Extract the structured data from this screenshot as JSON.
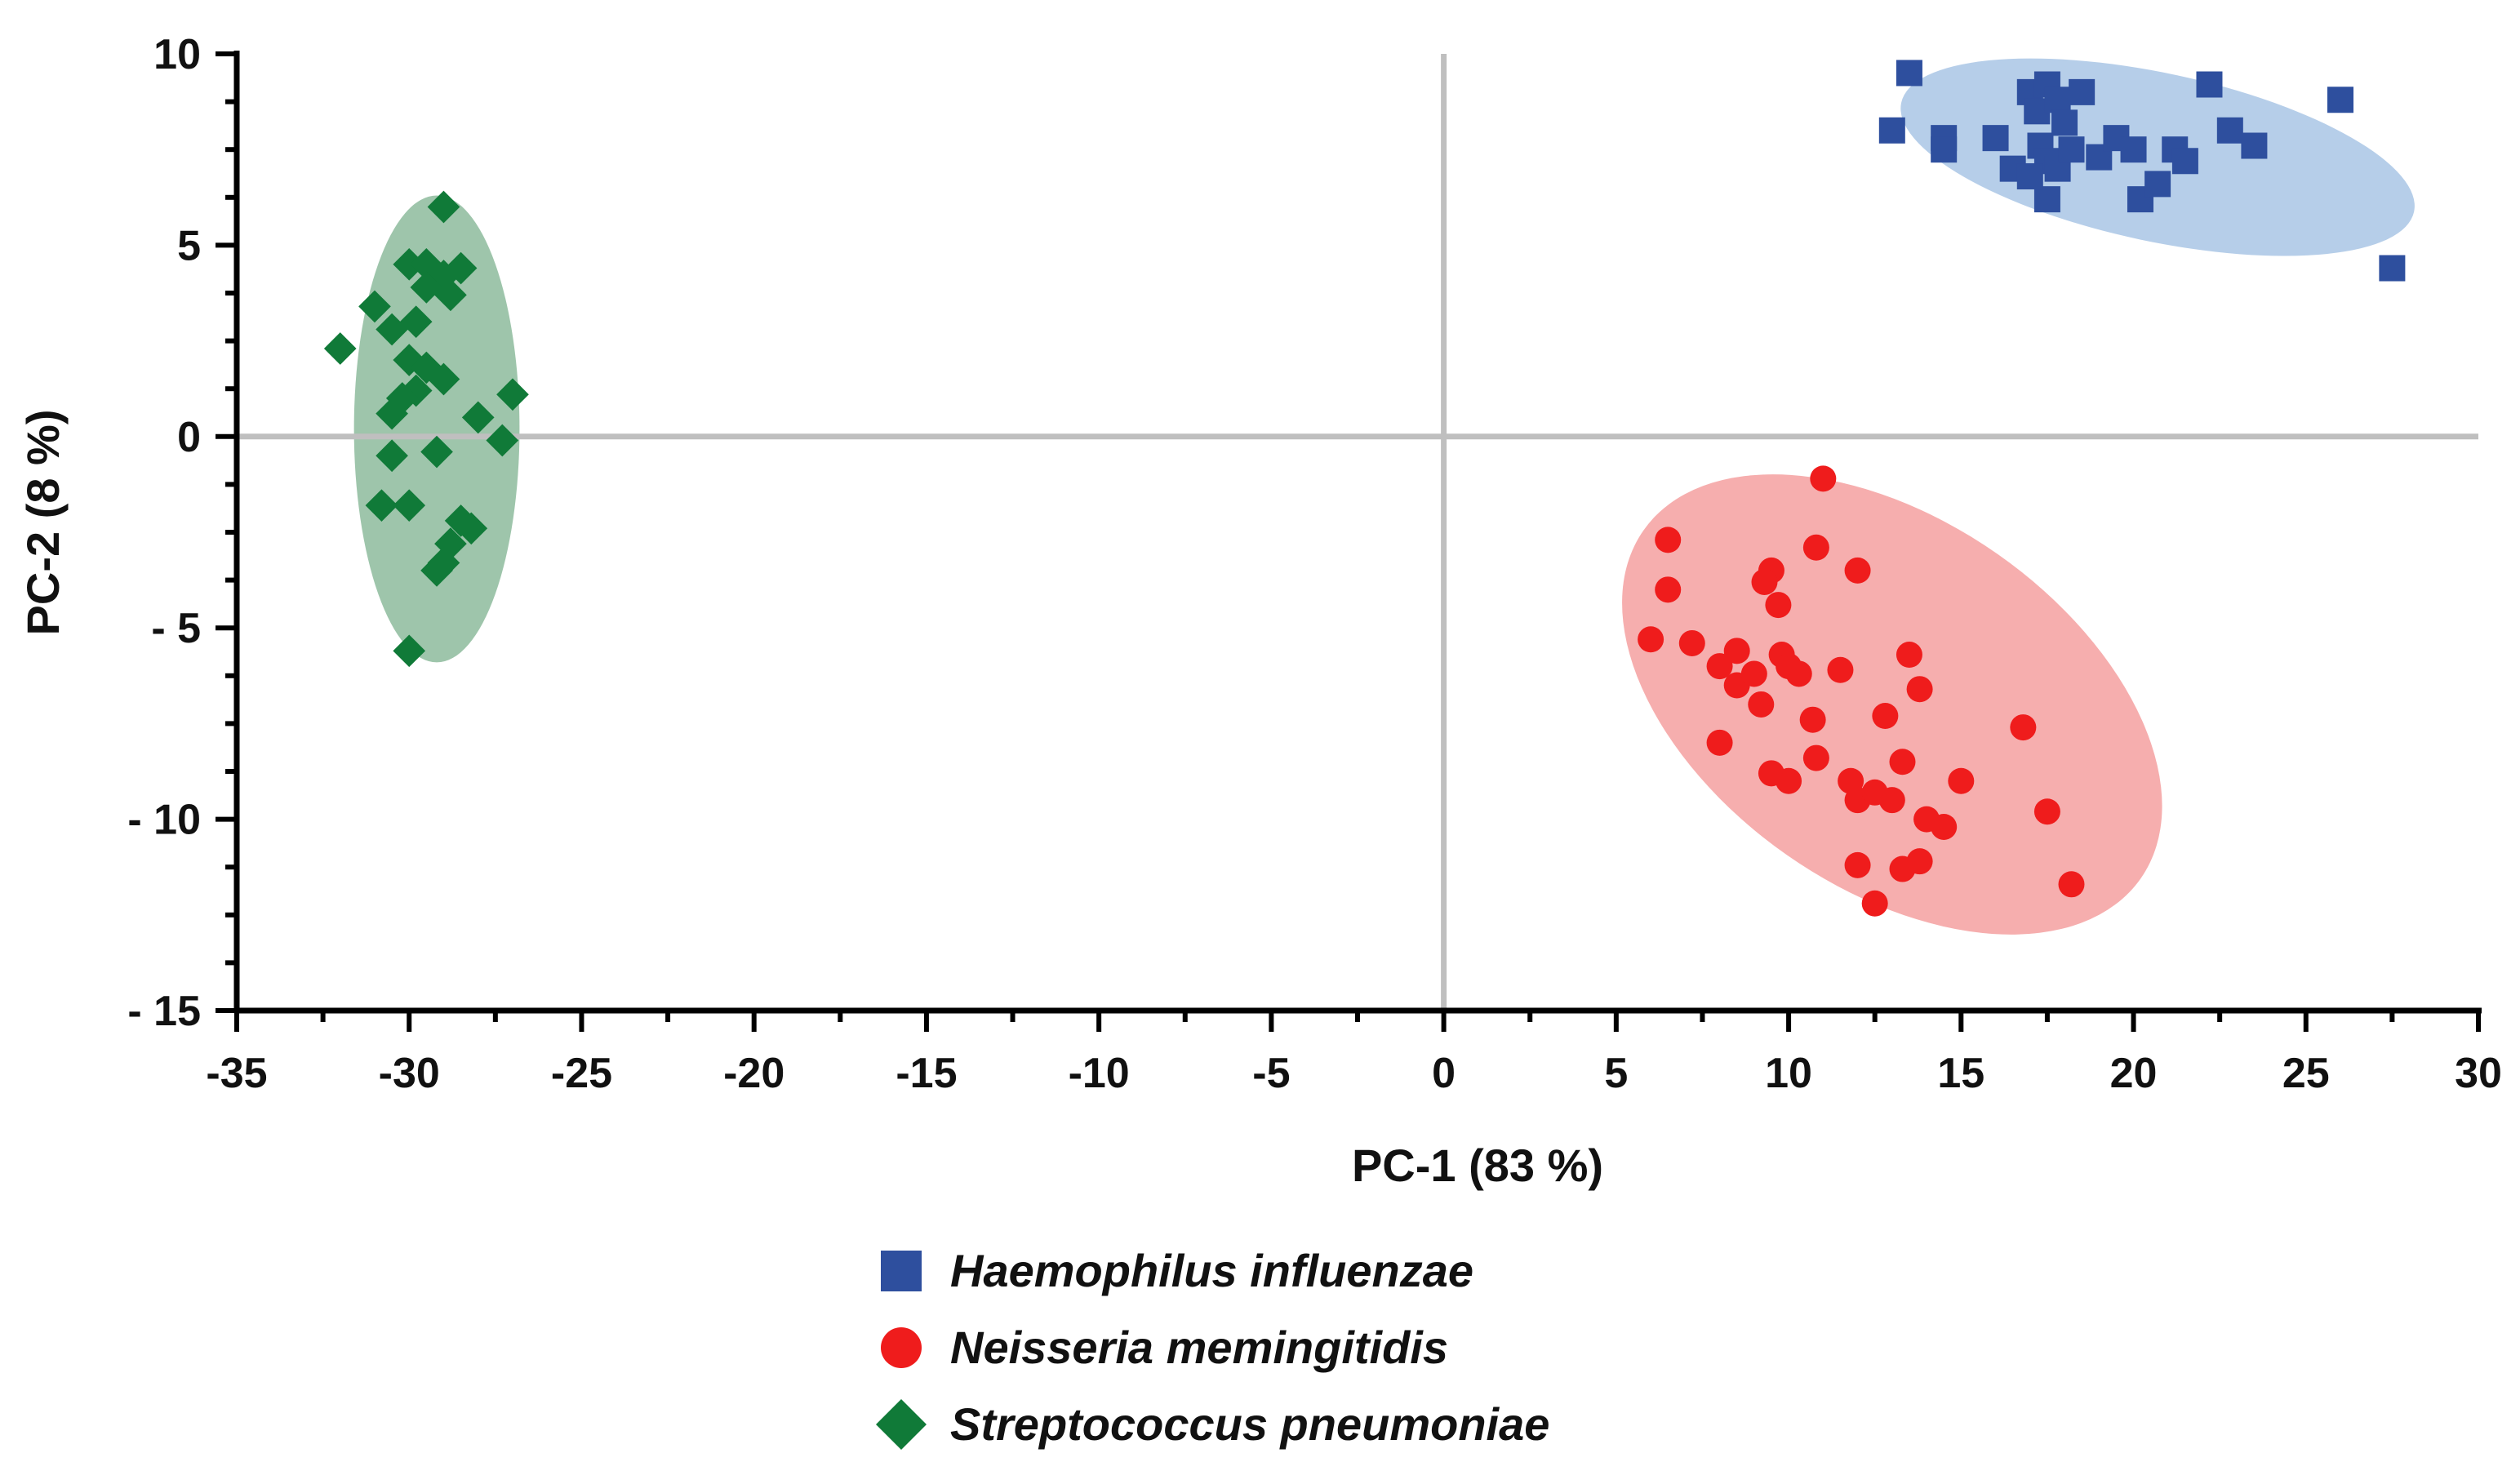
{
  "chart_data": {
    "type": "scatter",
    "title": "",
    "xlabel": "PC-1 (83 %)",
    "ylabel": "PC-2 (8 %)",
    "xlim": [
      -35,
      30
    ],
    "ylim": [
      -15,
      10
    ],
    "xticks": [
      -35,
      -30,
      -25,
      -20,
      -15,
      -10,
      -5,
      0,
      5,
      10,
      15,
      20,
      25,
      30
    ],
    "xtick_labels": [
      "-35",
      "-30",
      "-25",
      "-20",
      "-15",
      "-10",
      "-5",
      "0",
      "5",
      "10",
      "15",
      "20",
      "25",
      "30"
    ],
    "yticks": [
      10,
      5,
      0,
      -5,
      -10,
      -15
    ],
    "ytick_labels": [
      "10",
      "5",
      "0",
      "- 5",
      "- 10",
      "- 15"
    ],
    "reference_lines": {
      "x": 0,
      "y": 0,
      "color": "#bfbfbf"
    },
    "legend_position": "bottom-center",
    "series": [
      {
        "name": "Haemophilus influenzae",
        "marker": "square",
        "color": "#2e4f9e",
        "ellipse": {
          "center": [
            20.7,
            7.3
          ],
          "semi_axes": [
            7.6,
            2.2
          ],
          "angle_deg": -12,
          "color": "#a9c5e5"
        },
        "points": [
          [
            13.5,
            9.5
          ],
          [
            13.0,
            8.0
          ],
          [
            14.5,
            7.8
          ],
          [
            14.5,
            7.5
          ],
          [
            16.0,
            7.8
          ],
          [
            16.5,
            7.0
          ],
          [
            17.0,
            9.0
          ],
          [
            17.2,
            8.5
          ],
          [
            17.5,
            9.2
          ],
          [
            17.8,
            8.8
          ],
          [
            17.3,
            7.6
          ],
          [
            17.5,
            7.2
          ],
          [
            17.8,
            7.0
          ],
          [
            18.2,
            7.5
          ],
          [
            18.0,
            8.2
          ],
          [
            18.5,
            9.0
          ],
          [
            17.5,
            6.2
          ],
          [
            17.0,
            6.8
          ],
          [
            19.0,
            7.3
          ],
          [
            19.5,
            7.8
          ],
          [
            20.0,
            7.5
          ],
          [
            20.2,
            6.2
          ],
          [
            20.7,
            6.6
          ],
          [
            21.2,
            7.5
          ],
          [
            21.5,
            7.2
          ],
          [
            22.2,
            9.2
          ],
          [
            22.8,
            8.0
          ],
          [
            23.5,
            7.6
          ],
          [
            26.0,
            8.8
          ],
          [
            27.5,
            4.4
          ]
        ]
      },
      {
        "name": "Neisseria memingitidis",
        "marker": "circle",
        "color": "#ef1c1c",
        "ellipse": {
          "center": [
            13.0,
            -7.0
          ],
          "semi_axes": [
            8.8,
            4.8
          ],
          "angle_deg": -35,
          "color": "#f4a0a0"
        },
        "points": [
          [
            6.5,
            -2.7
          ],
          [
            6.5,
            -4.0
          ],
          [
            6.0,
            -5.3
          ],
          [
            7.2,
            -5.4
          ],
          [
            8.0,
            -6.0
          ],
          [
            8.5,
            -5.6
          ],
          [
            8.5,
            -6.5
          ],
          [
            9.0,
            -6.2
          ],
          [
            9.2,
            -7.0
          ],
          [
            9.5,
            -3.5
          ],
          [
            9.3,
            -3.8
          ],
          [
            9.7,
            -4.4
          ],
          [
            9.8,
            -5.7
          ],
          [
            10.0,
            -6.0
          ],
          [
            10.3,
            -6.2
          ],
          [
            8.0,
            -8.0
          ],
          [
            9.5,
            -8.8
          ],
          [
            10.0,
            -9.0
          ],
          [
            10.8,
            -2.9
          ],
          [
            11.0,
            -1.1
          ],
          [
            10.7,
            -7.4
          ],
          [
            10.8,
            -8.4
          ],
          [
            11.5,
            -6.1
          ],
          [
            12.0,
            -3.5
          ],
          [
            11.8,
            -9.0
          ],
          [
            12.0,
            -9.5
          ],
          [
            12.5,
            -9.3
          ],
          [
            13.0,
            -9.5
          ],
          [
            12.8,
            -7.3
          ],
          [
            13.3,
            -8.5
          ],
          [
            13.5,
            -5.7
          ],
          [
            13.8,
            -6.6
          ],
          [
            14.0,
            -10.0
          ],
          [
            14.5,
            -10.2
          ],
          [
            15.0,
            -9.0
          ],
          [
            12.0,
            -11.2
          ],
          [
            13.3,
            -11.3
          ],
          [
            13.8,
            -11.1
          ],
          [
            12.5,
            -12.2
          ],
          [
            16.8,
            -7.6
          ],
          [
            17.5,
            -9.8
          ],
          [
            18.2,
            -11.7
          ]
        ]
      },
      {
        "name": "Streptococcus pneumoniae",
        "marker": "diamond",
        "color": "#107a38",
        "ellipse": {
          "center": [
            -29.2,
            0.2
          ],
          "semi_axes": [
            2.4,
            6.1
          ],
          "angle_deg": 0,
          "color": "#8dbb9c"
        },
        "points": [
          [
            -29.0,
            6.0
          ],
          [
            -30.0,
            4.5
          ],
          [
            -29.5,
            4.5
          ],
          [
            -29.0,
            4.2
          ],
          [
            -28.5,
            4.4
          ],
          [
            -29.5,
            3.9
          ],
          [
            -28.8,
            3.7
          ],
          [
            -31.0,
            3.4
          ],
          [
            -29.8,
            3.0
          ],
          [
            -30.5,
            2.8
          ],
          [
            -32.0,
            2.3
          ],
          [
            -30.0,
            2.0
          ],
          [
            -29.5,
            1.8
          ],
          [
            -29.0,
            1.5
          ],
          [
            -29.8,
            1.2
          ],
          [
            -30.2,
            1.0
          ],
          [
            -30.5,
            0.6
          ],
          [
            -28.0,
            0.5
          ],
          [
            -27.0,
            1.1
          ],
          [
            -27.3,
            -0.1
          ],
          [
            -29.2,
            -0.4
          ],
          [
            -30.5,
            -0.5
          ],
          [
            -30.8,
            -1.8
          ],
          [
            -30.0,
            -1.8
          ],
          [
            -28.5,
            -2.2
          ],
          [
            -28.2,
            -2.4
          ],
          [
            -28.8,
            -2.8
          ],
          [
            -29.0,
            -3.3
          ],
          [
            -29.2,
            -3.5
          ],
          [
            -30.0,
            -5.6
          ]
        ]
      }
    ]
  }
}
